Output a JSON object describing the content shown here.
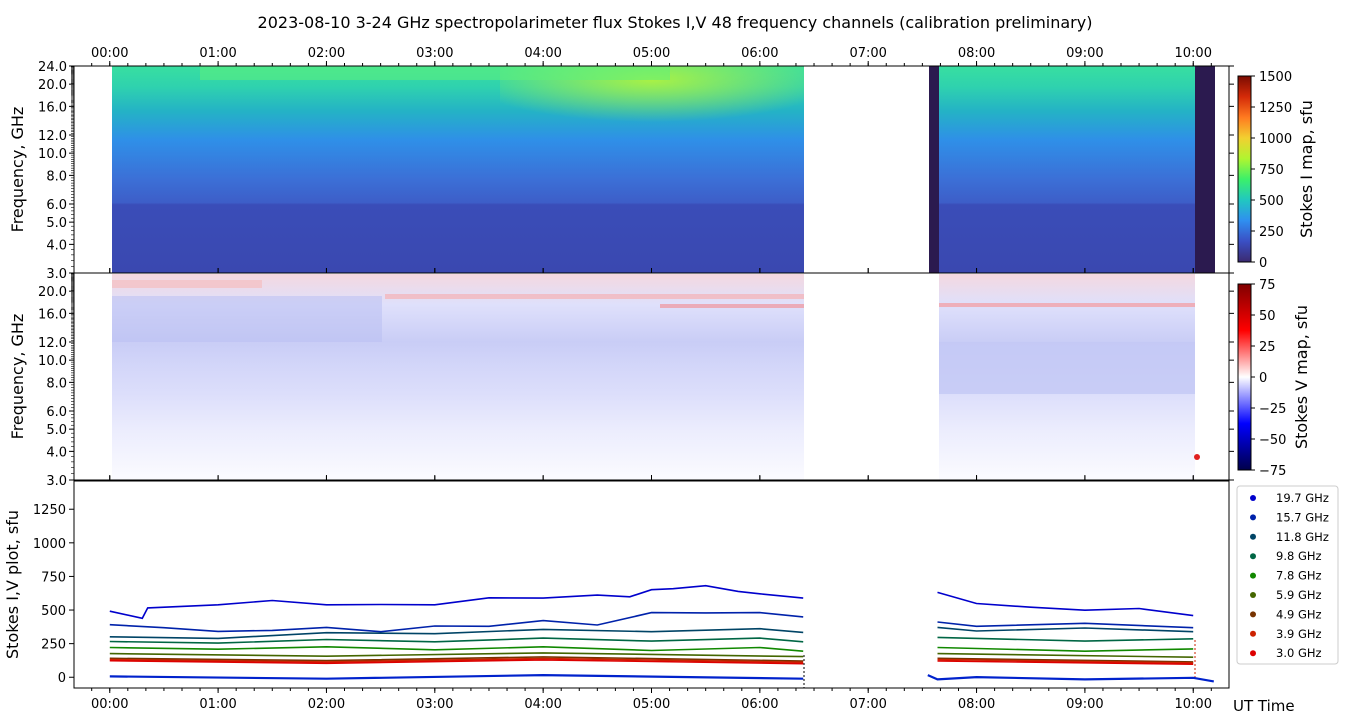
{
  "title": "2023-08-10     3-24 GHz spectropolarimeter flux   Stokes I,V   48 frequency channels   (calibration preliminary)",
  "time_ticks": [
    "00:00",
    "01:00",
    "02:00",
    "03:00",
    "04:00",
    "05:00",
    "06:00",
    "07:00",
    "08:00",
    "09:00",
    "10:00"
  ],
  "xlabel": "UT Time",
  "chart_data": [
    {
      "type": "heatmap",
      "name": "Stokes I map",
      "ylabel": "Frequency, GHz",
      "yscale": "log",
      "ylim": [
        3.0,
        24.0
      ],
      "y_ticks": [
        "3.0",
        "4.0",
        "5.0",
        "6.0",
        "8.0",
        "10.0",
        "12.0",
        "16.0",
        "20.0",
        "24.0"
      ],
      "xlim_hours": [
        -0.33,
        10.33
      ],
      "colorbar_label": "Stokes I map, sfu",
      "colorbar_range": [
        0,
        1500
      ],
      "colorbar_ticks": [
        "0",
        "250",
        "500",
        "750",
        "1000",
        "1250",
        "1500"
      ],
      "data_segments_hours": [
        [
          0.0,
          6.4
        ],
        [
          7.64,
          10.0
        ]
      ],
      "dark_bands_hours": [
        [
          7.55,
          7.64
        ],
        [
          10.0,
          10.19
        ]
      ],
      "colormap_hex": [
        "#3b2a70",
        "#3a4fc4",
        "#2f8ff0",
        "#21c7c0",
        "#3bf06a",
        "#b0f530",
        "#f2d030",
        "#ff7a20",
        "#d42a08",
        "#7a0c02"
      ]
    },
    {
      "type": "heatmap",
      "name": "Stokes V map",
      "ylabel": "Frequency, GHz",
      "yscale": "log",
      "ylim": [
        3.0,
        24.0
      ],
      "y_ticks": [
        "3.0",
        "4.0",
        "5.0",
        "6.0",
        "8.0",
        "10.0",
        "12.0",
        "16.0",
        "20.0"
      ],
      "colorbar_label": "Stokes V map, sfu",
      "colorbar_range": [
        -75,
        75
      ],
      "colorbar_ticks": [
        "75",
        "50",
        "25",
        "0",
        "−25",
        "−50",
        "−75"
      ],
      "data_segments_hours": [
        [
          0.0,
          6.4
        ],
        [
          7.64,
          10.0
        ]
      ],
      "colormap_hex": [
        "#00004a",
        "#0000ff",
        "#ffffff",
        "#ff0000",
        "#800000"
      ]
    },
    {
      "type": "line",
      "ylabel": "Stokes I,V plot, sfu",
      "ylim": [
        -80,
        1460
      ],
      "y_ticks": [
        0,
        250,
        500,
        750,
        1000,
        1250
      ],
      "xlim_hours": [
        -0.33,
        10.33
      ],
      "series": [
        {
          "name": "19.7 GHz",
          "color": "#0000cc",
          "x": [
            0.0,
            0.3,
            0.35,
            1.0,
            1.5,
            2.0,
            2.5,
            3.0,
            3.5,
            4.0,
            4.5,
            4.8,
            5.0,
            5.2,
            5.5,
            5.8,
            6.0,
            6.4,
            7.64,
            8.0,
            8.5,
            9.0,
            9.5,
            10.0
          ],
          "y": [
            480,
            450,
            505,
            550,
            560,
            550,
            530,
            550,
            580,
            600,
            600,
            610,
            640,
            670,
            670,
            650,
            610,
            600,
            620,
            560,
            510,
            510,
            500,
            470
          ]
        },
        {
          "name": "15.7 GHz",
          "color": "#0022aa",
          "x": [
            0.0,
            0.5,
            1.0,
            1.5,
            2.0,
            2.5,
            3.0,
            3.5,
            4.0,
            4.5,
            5.0,
            5.5,
            6.0,
            6.4,
            7.64,
            8.0,
            9.0,
            10.0
          ],
          "y": [
            380,
            380,
            330,
            360,
            360,
            350,
            370,
            390,
            410,
            400,
            470,
            490,
            470,
            460,
            400,
            390,
            390,
            380
          ]
        },
        {
          "name": "11.8 GHz",
          "color": "#004466",
          "x": [
            0.0,
            1.0,
            2.0,
            3.0,
            4.0,
            5.0,
            6.0,
            6.4,
            7.64,
            8.0,
            9.0,
            10.0
          ],
          "y": [
            290,
            300,
            320,
            335,
            345,
            350,
            350,
            345,
            360,
            355,
            355,
            350
          ]
        },
        {
          "name": "9.8 GHz",
          "color": "#006644",
          "x": [
            0.0,
            1.0,
            2.0,
            3.0,
            4.0,
            5.0,
            6.0,
            6.4,
            7.64,
            9.0,
            10.0
          ],
          "y": [
            255,
            265,
            270,
            275,
            280,
            280,
            280,
            275,
            285,
            280,
            275
          ]
        },
        {
          "name": "7.8 GHz",
          "color": "#118800",
          "x": [
            0.0,
            1.0,
            2.0,
            3.0,
            4.0,
            5.0,
            6.0,
            6.4,
            7.64,
            9.0,
            10.0
          ],
          "y": [
            210,
            220,
            215,
            215,
            215,
            210,
            210,
            205,
            210,
            205,
            200
          ]
        },
        {
          "name": "5.9 GHz",
          "color": "#446600",
          "x": [
            0.0,
            2.0,
            4.0,
            6.4,
            7.64,
            10.0
          ],
          "y": [
            165,
            168,
            170,
            165,
            165,
            160
          ]
        },
        {
          "name": "4.9 GHz",
          "color": "#773300",
          "x": [
            0.0,
            2.0,
            4.0,
            6.4,
            7.64,
            10.0
          ],
          "y": [
            130,
            135,
            140,
            132,
            130,
            125
          ]
        },
        {
          "name": "3.9 GHz",
          "color": "#cc2200",
          "x": [
            0.0,
            2.0,
            4.0,
            6.4,
            7.64,
            10.0
          ],
          "y": [
            120,
            125,
            128,
            122,
            120,
            118
          ]
        },
        {
          "name": "3.0 GHz",
          "color": "#dd0000",
          "x": [
            0.0,
            2.0,
            4.0,
            6.4,
            7.64,
            10.0
          ],
          "y": [
            112,
            115,
            118,
            112,
            110,
            108
          ]
        },
        {
          "name": "",
          "color": "#0022cc",
          "x": [
            0.0,
            2.0,
            4.0,
            6.4,
            7.55,
            7.64,
            8.0,
            9.0,
            10.0,
            10.19
          ],
          "y": [
            -5,
            0,
            5,
            0,
            5,
            -5,
            -10,
            -5,
            -15,
            -20
          ]
        }
      ]
    }
  ]
}
